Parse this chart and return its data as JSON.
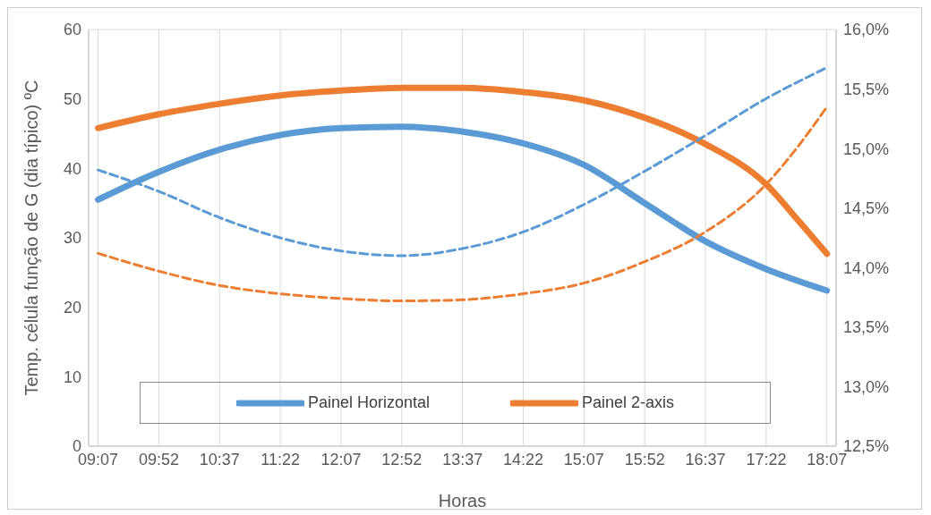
{
  "chart_data": {
    "type": "line",
    "xlabel": "Horas",
    "ylabel": "Temp. célula  função de G (dia típico) ºC",
    "xlim": [
      9.0,
      18.23
    ],
    "xticks": [
      {
        "value": 9.1167,
        "label": "09:07"
      },
      {
        "value": 9.8667,
        "label": "09:52"
      },
      {
        "value": 10.6167,
        "label": "10:37"
      },
      {
        "value": 11.3667,
        "label": "11:22"
      },
      {
        "value": 12.1167,
        "label": "12:07"
      },
      {
        "value": 12.8667,
        "label": "12:52"
      },
      {
        "value": 13.6167,
        "label": "13:37"
      },
      {
        "value": 14.3667,
        "label": "14:22"
      },
      {
        "value": 15.1167,
        "label": "15:07"
      },
      {
        "value": 15.8667,
        "label": "15:52"
      },
      {
        "value": 16.6167,
        "label": "16:37"
      },
      {
        "value": 17.3667,
        "label": "17:22"
      },
      {
        "value": 18.1167,
        "label": "18:07"
      }
    ],
    "ylim": [
      0,
      60
    ],
    "yticks": [
      0,
      10,
      20,
      30,
      40,
      50,
      60
    ],
    "y2lim": [
      12.5,
      16
    ],
    "y2ticks": [
      {
        "value": 12.5,
        "label": "12,5%"
      },
      {
        "value": 13,
        "label": "13,0%"
      },
      {
        "value": 13.5,
        "label": "13,5%"
      },
      {
        "value": 14,
        "label": "14,0%"
      },
      {
        "value": 14.5,
        "label": "14,5%"
      },
      {
        "value": 15,
        "label": "15,0%"
      },
      {
        "value": 15.5,
        "label": "15,5%"
      },
      {
        "value": 16,
        "label": "16,0%"
      }
    ],
    "grid": true,
    "legend": "bottom",
    "marker": "none",
    "series": [
      {
        "name": "Painel Horizontal",
        "color": "#5b9bd5",
        "line_style": "solid",
        "x": [
          9.1167,
          9.8667,
          10.6167,
          11.3667,
          12.1167,
          12.8667,
          13.6167,
          14.3667,
          15.1167,
          15.8667,
          16.6167,
          17.3667,
          18.1167
        ],
        "values": [
          35.5,
          39.5,
          42.7,
          44.8,
          45.8,
          46.0,
          45.3,
          43.6,
          40.5,
          35.0,
          29.5,
          25.5,
          22.4
        ]
      },
      {
        "name": "Painel 2-axis",
        "color": "#ed7d31",
        "line_style": "solid",
        "x": [
          9.1167,
          9.8667,
          10.6167,
          11.3667,
          12.1167,
          12.8667,
          13.6167,
          14.3667,
          15.1167,
          15.8667,
          16.6167,
          17.3667,
          17.785,
          18.1167
        ],
        "values": [
          45.8,
          47.8,
          49.3,
          50.5,
          51.2,
          51.6,
          51.6,
          51.0,
          49.8,
          47.3,
          43.5,
          37.7,
          32.2,
          27.7
        ]
      },
      {
        "color": "#5b9bd5",
        "line_style": "dashed",
        "axis": "y2",
        "x": [
          9.1167,
          9.8667,
          10.6167,
          11.3667,
          12.1167,
          12.8667,
          13.6167,
          14.3667,
          15.1167,
          15.8667,
          16.6167,
          17.3667,
          18.1167
        ],
        "values": [
          14.82,
          14.64,
          14.42,
          14.25,
          14.14,
          14.1,
          14.16,
          14.3,
          14.53,
          14.81,
          15.11,
          15.42,
          15.68
        ]
      },
      {
        "color": "#ed7d31",
        "line_style": "dashed",
        "axis": "y2",
        "x": [
          9.1167,
          9.8667,
          10.6167,
          11.3667,
          12.1167,
          12.8667,
          13.6167,
          14.3667,
          15.1167,
          15.8667,
          16.6167,
          17.3667,
          17.785,
          18.1167
        ],
        "values": [
          14.12,
          13.97,
          13.85,
          13.78,
          13.74,
          13.72,
          13.73,
          13.78,
          13.87,
          14.05,
          14.3,
          14.7,
          15.04,
          15.35
        ]
      }
    ]
  }
}
